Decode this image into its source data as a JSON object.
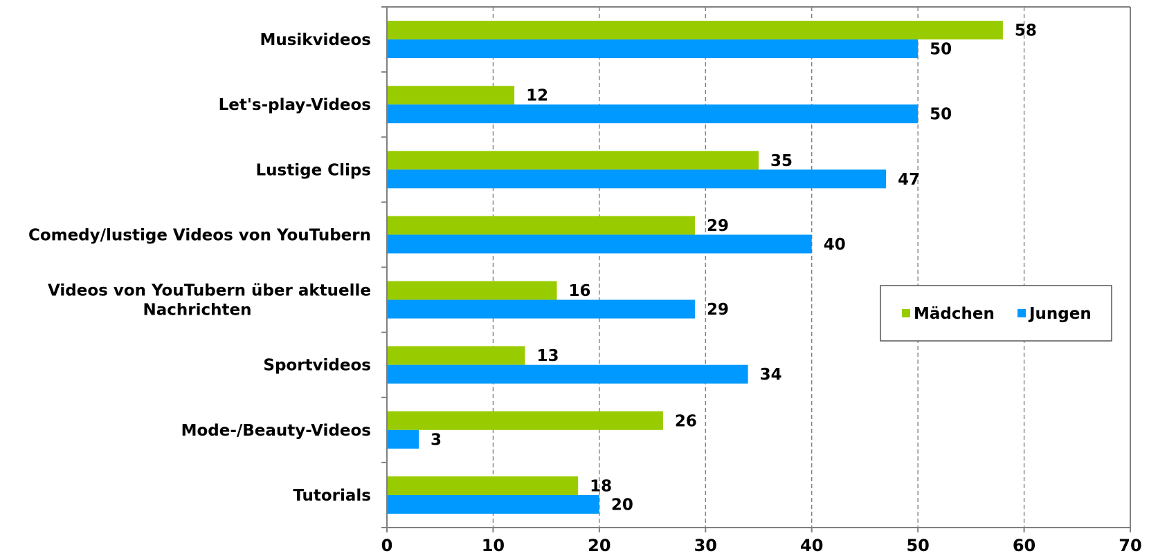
{
  "chart_data": {
    "type": "bar",
    "orientation": "horizontal",
    "categories": [
      [
        "Musikvideos"
      ],
      [
        "Let's-play-Videos"
      ],
      [
        "Lustige Clips"
      ],
      [
        "Comedy/lustige Videos von YouTubern"
      ],
      [
        "Videos von YouTubern über aktuelle",
        "Nachrichten"
      ],
      [
        "Sportvideos"
      ],
      [
        "Mode-/Beauty-Videos"
      ],
      [
        "Tutorials"
      ]
    ],
    "series": [
      {
        "name": "Mädchen",
        "color": "#99cc00",
        "values": [
          58,
          12,
          35,
          29,
          16,
          13,
          26,
          18
        ]
      },
      {
        "name": "Jungen",
        "color": "#0099ff",
        "values": [
          50,
          50,
          47,
          40,
          29,
          34,
          3,
          20
        ]
      }
    ],
    "xlim": [
      0,
      70
    ],
    "xticks": [
      "0",
      "10",
      "20",
      "30",
      "40",
      "50",
      "60",
      "70"
    ],
    "grid": "vertical dashed",
    "legend_position": "right",
    "title": "",
    "xlabel": "",
    "ylabel": ""
  }
}
